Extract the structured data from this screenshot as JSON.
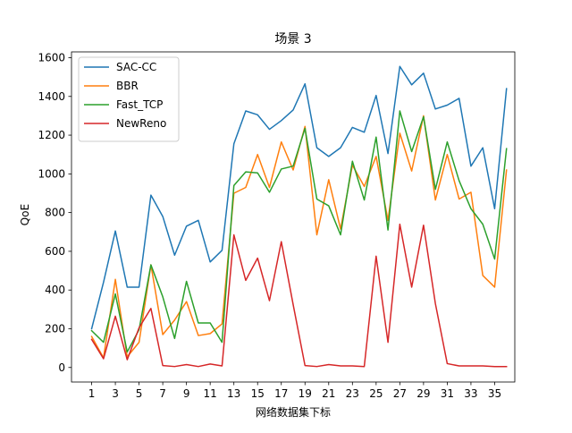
{
  "chart_data": {
    "type": "line",
    "title": "场景 3",
    "xlabel": "网络数据集下标",
    "ylabel": "QoE",
    "xlim": [
      -0.7,
      36.7
    ],
    "ylim": [
      -75,
      1630
    ],
    "grid": false,
    "legend_position": "top-left",
    "x": [
      1,
      2,
      3,
      4,
      5,
      6,
      7,
      8,
      9,
      10,
      11,
      12,
      13,
      14,
      15,
      16,
      17,
      18,
      19,
      20,
      21,
      22,
      23,
      24,
      25,
      26,
      27,
      28,
      29,
      30,
      31,
      32,
      33,
      34,
      35,
      36
    ],
    "x_ticks": [
      1,
      3,
      5,
      7,
      9,
      11,
      13,
      15,
      17,
      19,
      21,
      23,
      25,
      27,
      29,
      31,
      33,
      35
    ],
    "y_ticks": [
      0,
      200,
      400,
      600,
      800,
      1000,
      1200,
      1400,
      1600
    ],
    "series": [
      {
        "name": "SAC-CC",
        "color": "#1f77b4",
        "values": [
          200,
          440,
          705,
          415,
          415,
          890,
          780,
          580,
          730,
          760,
          545,
          605,
          1155,
          1325,
          1305,
          1230,
          1275,
          1330,
          1465,
          1135,
          1090,
          1135,
          1240,
          1215,
          1405,
          1105,
          1555,
          1460,
          1520,
          1335,
          1355,
          1390,
          1040,
          1135,
          820,
          1440
        ]
      },
      {
        "name": "BBR",
        "color": "#ff7f0e",
        "values": [
          160,
          50,
          455,
          55,
          130,
          530,
          170,
          245,
          340,
          165,
          175,
          225,
          900,
          930,
          1100,
          930,
          1165,
          1020,
          1245,
          685,
          970,
          715,
          1045,
          935,
          1090,
          760,
          1210,
          1015,
          1300,
          865,
          1100,
          870,
          905,
          475,
          415,
          1020
        ]
      },
      {
        "name": "Fast_TCP",
        "color": "#2ca02c",
        "values": [
          190,
          130,
          380,
          80,
          195,
          530,
          365,
          150,
          445,
          230,
          230,
          130,
          940,
          1010,
          1005,
          905,
          1025,
          1040,
          1235,
          870,
          835,
          685,
          1065,
          865,
          1190,
          710,
          1325,
          1115,
          1295,
          920,
          1165,
          965,
          820,
          740,
          560,
          1130
        ]
      },
      {
        "name": "NewReno",
        "color": "#d62728",
        "values": [
          145,
          45,
          265,
          40,
          205,
          305,
          10,
          5,
          15,
          5,
          18,
          8,
          685,
          450,
          565,
          345,
          650,
          325,
          10,
          5,
          15,
          8,
          8,
          5,
          575,
          130,
          740,
          415,
          735,
          330,
          20,
          8,
          8,
          8,
          5,
          5
        ]
      }
    ]
  }
}
